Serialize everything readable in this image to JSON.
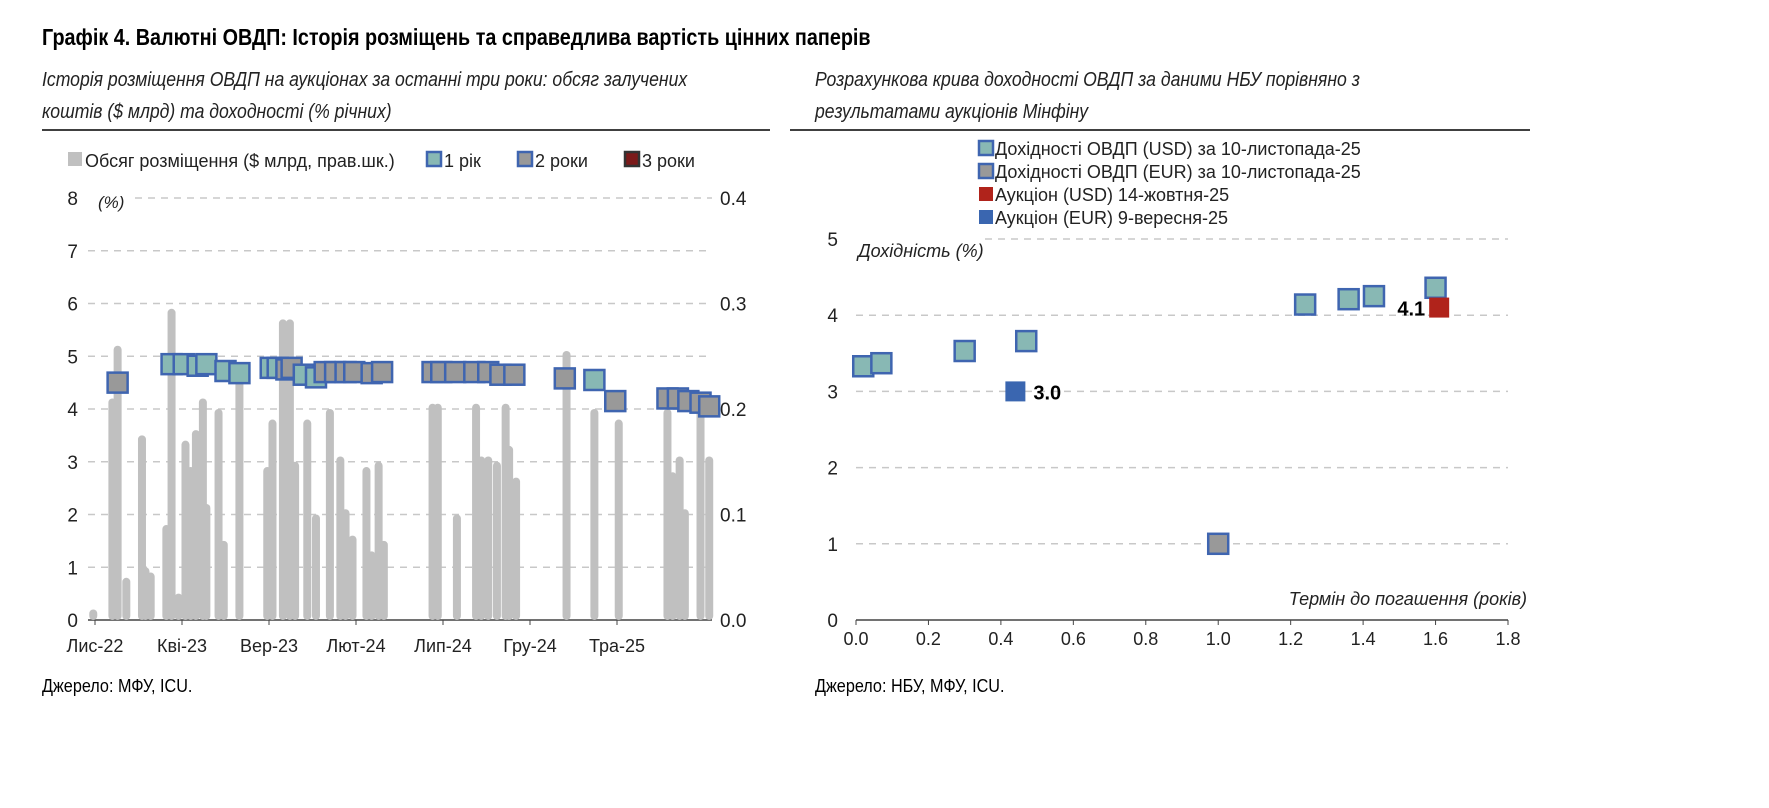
{
  "title": "Графік 4. Валютні ОВДП: Історія розміщень та справедлива вартість цінних паперів",
  "left": {
    "subtitle_line1": "Історія розміщення ОВДП на аукціонах за останні три роки: обсяг залучених",
    "subtitle_line2": "коштів ($ млрд) та доходності (% річних)",
    "source": "Джерело: МФУ, ICU."
  },
  "right": {
    "subtitle_line1": "Розрахункова крива доходності ОВДП за даними НБУ порівняно з",
    "subtitle_line2": "результатами аукціонів Мінфіну",
    "source": "Джерело: НБУ, МФУ, ICU."
  },
  "colors": {
    "bar": "#c0c0c0",
    "one_year": "#88b8b4",
    "two_years": "#999999",
    "three_years": "#7b1a1a",
    "border": "#3f65b0",
    "auction_usd": "#b0231b",
    "auction_eur": "#3a66b0",
    "grid": "#c8c8c8"
  },
  "chart_data": [
    {
      "type": "bar+scatter",
      "title": "Історія розміщення ОВДП на аукціонах за останні три роки",
      "ylabel": "(%)",
      "ylim": [
        0,
        8
      ],
      "y_ticks": [
        "0",
        "1",
        "2",
        "3",
        "4",
        "5",
        "6",
        "7",
        "8"
      ],
      "y2lim": [
        0,
        0.4
      ],
      "y2_ticks": [
        "0.0",
        "0.1",
        "0.2",
        "0.3",
        "0.4"
      ],
      "x_unit": "months since Nov-2022",
      "xlim": [
        -0.3,
        35.6
      ],
      "x_ticks": [
        {
          "m": 0,
          "label": "Лис-22"
        },
        {
          "m": 5,
          "label": "Кві-23"
        },
        {
          "m": 10,
          "label": "Вер-23"
        },
        {
          "m": 15,
          "label": "Лют-24"
        },
        {
          "m": 20,
          "label": "Лип-24"
        },
        {
          "m": 25,
          "label": "Гру-24"
        },
        {
          "m": 30,
          "label": "Тра-25"
        }
      ],
      "legend": [
        {
          "key": "bars",
          "label": "Обсяг розміщення ($ млрд, прав.шк.)"
        },
        {
          "key": "one_year",
          "label": "1 рік"
        },
        {
          "key": "two_years",
          "label": "2 роки"
        },
        {
          "key": "three_years",
          "label": "3 роки"
        }
      ],
      "bars": [
        [
          -0.1,
          0.01
        ],
        [
          1.0,
          0.21
        ],
        [
          1.3,
          0.26
        ],
        [
          1.8,
          0.04
        ],
        [
          2.7,
          0.175
        ],
        [
          2.9,
          0.05
        ],
        [
          3.2,
          0.045
        ],
        [
          4.1,
          0.09
        ],
        [
          4.4,
          0.295
        ],
        [
          4.8,
          0.025
        ],
        [
          5.2,
          0.17
        ],
        [
          5.5,
          0.145
        ],
        [
          5.8,
          0.18
        ],
        [
          6.2,
          0.21
        ],
        [
          6.4,
          0.11
        ],
        [
          7.1,
          0.2
        ],
        [
          7.4,
          0.075
        ],
        [
          8.3,
          0.235
        ],
        [
          9.9,
          0.145
        ],
        [
          10.2,
          0.19
        ],
        [
          10.8,
          0.285
        ],
        [
          11.2,
          0.285
        ],
        [
          11.5,
          0.15
        ],
        [
          12.2,
          0.19
        ],
        [
          12.7,
          0.1
        ],
        [
          13.5,
          0.2
        ],
        [
          14.1,
          0.155
        ],
        [
          14.4,
          0.105
        ],
        [
          14.8,
          0.08
        ],
        [
          15.6,
          0.145
        ],
        [
          15.9,
          0.065
        ],
        [
          16.3,
          0.15
        ],
        [
          16.6,
          0.075
        ],
        [
          19.4,
          0.205
        ],
        [
          19.7,
          0.205
        ],
        [
          20.8,
          0.1
        ],
        [
          21.9,
          0.205
        ],
        [
          22.2,
          0.155
        ],
        [
          22.6,
          0.155
        ],
        [
          23.1,
          0.15
        ],
        [
          23.6,
          0.205
        ],
        [
          23.8,
          0.165
        ],
        [
          24.2,
          0.135
        ],
        [
          27.1,
          0.255
        ],
        [
          28.7,
          0.2
        ],
        [
          30.1,
          0.19
        ],
        [
          32.9,
          0.2
        ],
        [
          33.2,
          0.14
        ],
        [
          33.6,
          0.155
        ],
        [
          33.9,
          0.105
        ],
        [
          34.8,
          0.205
        ],
        [
          35.3,
          0.155
        ]
      ],
      "yields": [
        {
          "m": 1.3,
          "y": 4.5,
          "tenor": "two_years"
        },
        {
          "m": 4.4,
          "y": 4.85,
          "tenor": "one_year"
        },
        {
          "m": 5.1,
          "y": 4.85,
          "tenor": "one_year"
        },
        {
          "m": 5.9,
          "y": 4.82,
          "tenor": "one_year"
        },
        {
          "m": 6.4,
          "y": 4.85,
          "tenor": "one_year"
        },
        {
          "m": 7.5,
          "y": 4.72,
          "tenor": "one_year"
        },
        {
          "m": 8.3,
          "y": 4.68,
          "tenor": "one_year"
        },
        {
          "m": 10.1,
          "y": 4.78,
          "tenor": "one_year"
        },
        {
          "m": 10.5,
          "y": 4.78,
          "tenor": "one_year"
        },
        {
          "m": 11.0,
          "y": 4.75,
          "tenor": "two_years"
        },
        {
          "m": 11.3,
          "y": 4.78,
          "tenor": "two_years"
        },
        {
          "m": 12.0,
          "y": 4.65,
          "tenor": "one_year"
        },
        {
          "m": 12.7,
          "y": 4.6,
          "tenor": "one_year"
        },
        {
          "m": 13.2,
          "y": 4.7,
          "tenor": "two_years"
        },
        {
          "m": 13.8,
          "y": 4.7,
          "tenor": "two_years"
        },
        {
          "m": 14.4,
          "y": 4.7,
          "tenor": "two_years"
        },
        {
          "m": 14.9,
          "y": 4.7,
          "tenor": "two_years"
        },
        {
          "m": 15.9,
          "y": 4.68,
          "tenor": "two_years"
        },
        {
          "m": 16.5,
          "y": 4.7,
          "tenor": "two_years"
        },
        {
          "m": 19.4,
          "y": 4.7,
          "tenor": "two_years"
        },
        {
          "m": 19.9,
          "y": 4.7,
          "tenor": "two_years"
        },
        {
          "m": 20.7,
          "y": 4.7,
          "tenor": "two_years"
        },
        {
          "m": 21.8,
          "y": 4.7,
          "tenor": "two_years"
        },
        {
          "m": 22.6,
          "y": 4.7,
          "tenor": "two_years"
        },
        {
          "m": 23.3,
          "y": 4.65,
          "tenor": "two_years"
        },
        {
          "m": 24.1,
          "y": 4.65,
          "tenor": "two_years"
        },
        {
          "m": 27.0,
          "y": 4.58,
          "tenor": "two_years"
        },
        {
          "m": 28.7,
          "y": 4.55,
          "tenor": "one_year"
        },
        {
          "m": 29.9,
          "y": 4.15,
          "tenor": "two_years"
        },
        {
          "m": 32.9,
          "y": 4.2,
          "tenor": "two_years"
        },
        {
          "m": 33.5,
          "y": 4.2,
          "tenor": "two_years"
        },
        {
          "m": 34.1,
          "y": 4.15,
          "tenor": "two_years"
        },
        {
          "m": 34.8,
          "y": 4.12,
          "tenor": "two_years"
        },
        {
          "m": 35.3,
          "y": 4.05,
          "tenor": "two_years"
        }
      ]
    },
    {
      "type": "scatter",
      "title": "Розрахункова крива доходності ОВДП за даними НБУ порівняно з результатами аукціонів Мінфіну",
      "xlabel": "Термін до погашення (років)",
      "ylabel": "Дохідність (%)",
      "xlim": [
        0,
        1.8
      ],
      "ylim": [
        0,
        5
      ],
      "x_ticks": [
        "0.0",
        "0.2",
        "0.4",
        "0.6",
        "0.8",
        "1.0",
        "1.2",
        "1.4",
        "1.6",
        "1.8"
      ],
      "y_ticks": [
        "0",
        "1",
        "2",
        "3",
        "4",
        "5"
      ],
      "series": [
        {
          "key": "usd",
          "name": "Дохідності ОВДП (USD) за 10-листопада-25",
          "points": [
            [
              0.02,
              3.33
            ],
            [
              0.07,
              3.37
            ],
            [
              0.3,
              3.53
            ],
            [
              0.47,
              3.66
            ],
            [
              1.24,
              4.14
            ],
            [
              1.36,
              4.21
            ],
            [
              1.43,
              4.25
            ],
            [
              1.6,
              4.36
            ]
          ]
        },
        {
          "key": "eur",
          "name": "Дохідності ОВДП (EUR) за 10-листопада-25",
          "points": [
            [
              1.0,
              1.0
            ]
          ]
        },
        {
          "key": "auc_usd",
          "name": "Аукціон (USD) 14-жовтня-25",
          "points": [
            [
              1.61,
              4.1
            ]
          ],
          "label": "4.1"
        },
        {
          "key": "auc_eur",
          "name": "Аукціон (EUR) 9-вересня-25",
          "points": [
            [
              0.44,
              3.0
            ]
          ],
          "label": "3.0"
        }
      ]
    }
  ]
}
